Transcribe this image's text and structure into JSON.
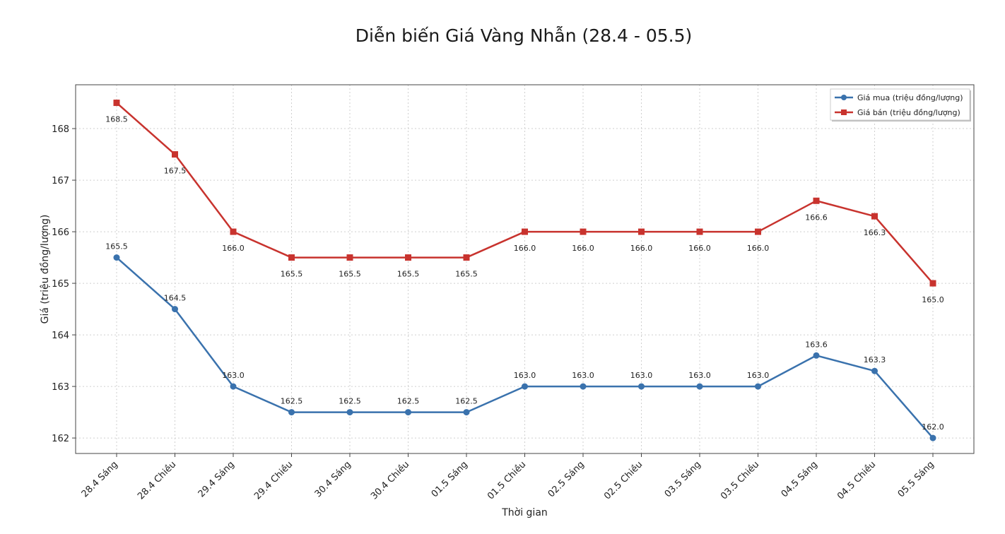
{
  "chart_data": {
    "type": "line",
    "title": "Diễn biến Giá Vàng Nhẫn (28.4 - 05.5)",
    "xlabel": "Thời gian",
    "ylabel": "Giá (triệu đồng/lượng)",
    "categories": [
      "28.4 Sáng",
      "28.4 Chiều",
      "29.4 Sáng",
      "29.4 Chiều",
      "30.4 Sáng",
      "30.4 Chiều",
      "01.5 Sáng",
      "01.5 Chiều",
      "02.5 Sáng",
      "02.5 Chiều",
      "03.5 Sáng",
      "03.5 Chiều",
      "04.5 Sáng",
      "04.5 Chiều",
      "05.5 Sáng"
    ],
    "ylim": [
      161.7,
      168.85
    ],
    "yticks": [
      162,
      163,
      164,
      165,
      166,
      167,
      168
    ],
    "grid": true,
    "legend_position": "top-right",
    "series": [
      {
        "name": "Giá mua (triệu đồng/lượng)",
        "color": "#3a72ad",
        "marker": "circle",
        "values": [
          165.5,
          164.5,
          163.0,
          162.5,
          162.5,
          162.5,
          162.5,
          163.0,
          163.0,
          163.0,
          163.0,
          163.0,
          163.6,
          163.3,
          162.0
        ],
        "labels": [
          "165.5",
          "164.5",
          "163.0",
          "162.5",
          "162.5",
          "162.5",
          "162.5",
          "163.0",
          "163.0",
          "163.0",
          "163.0",
          "163.0",
          "163.6",
          "163.3",
          "162.0"
        ]
      },
      {
        "name": "Giá bán (triệu đồng/lượng)",
        "color": "#c8332e",
        "marker": "square",
        "values": [
          168.5,
          167.5,
          166.0,
          165.5,
          165.5,
          165.5,
          165.5,
          166.0,
          166.0,
          166.0,
          166.0,
          166.0,
          166.6,
          166.3,
          165.0
        ],
        "labels": [
          "168.5",
          "167.5",
          "166.0",
          "165.5",
          "165.5",
          "165.5",
          "165.5",
          "166.0",
          "166.0",
          "166.0",
          "166.0",
          "166.0",
          "166.6",
          "166.3",
          "165.0"
        ]
      }
    ]
  }
}
